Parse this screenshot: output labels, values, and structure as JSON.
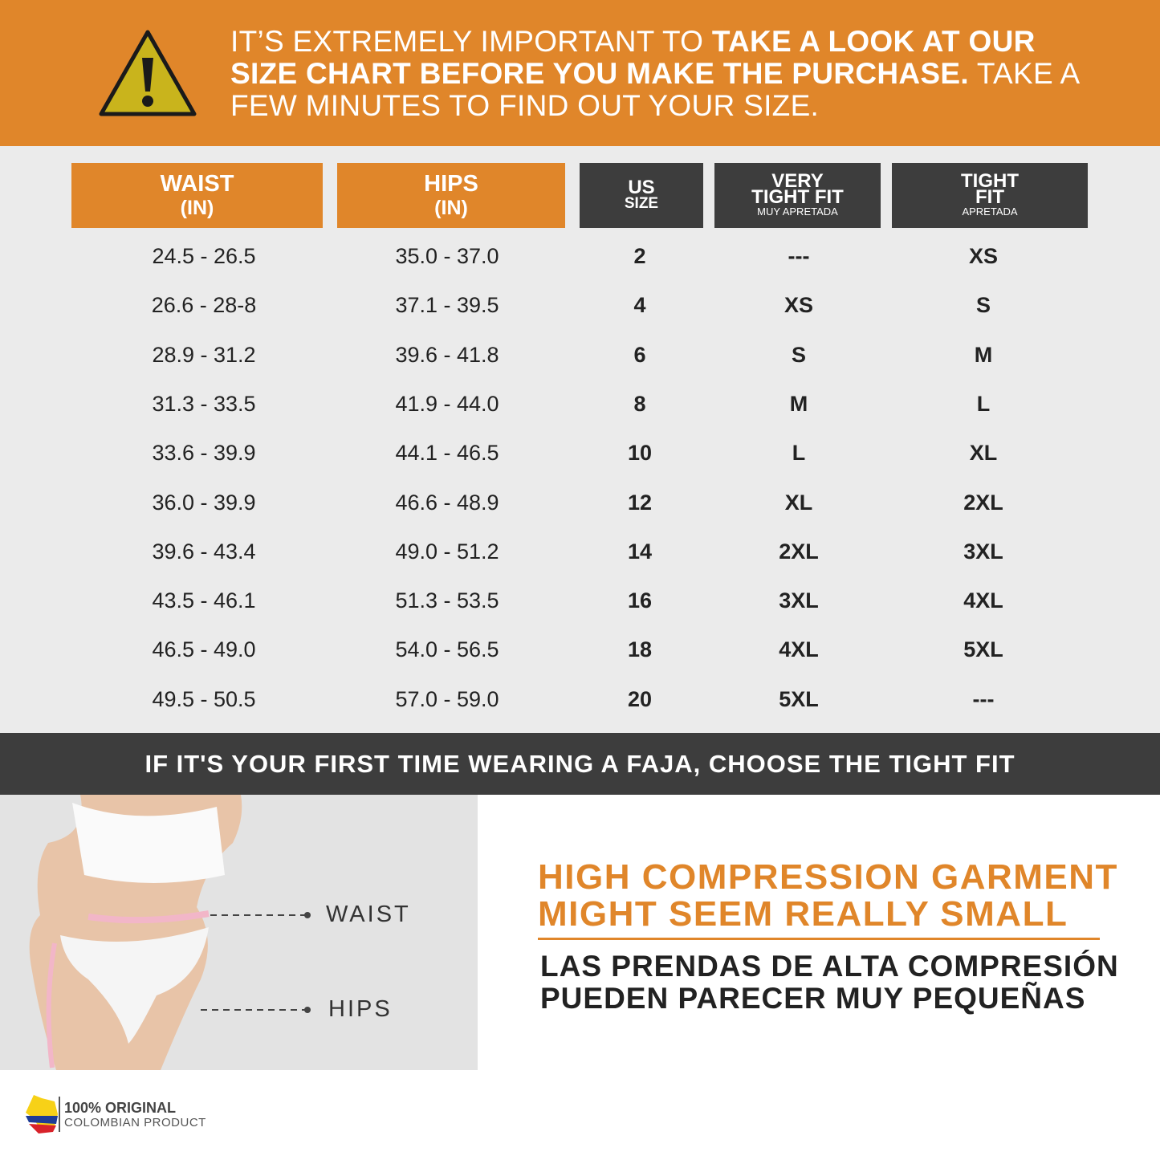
{
  "banner": {
    "text_regular_1": "IT’S EXTREMELY IMPORTANT TO ",
    "text_bold": "TAKE A LOOK AT OUR SIZE CHART BEFORE YOU MAKE THE PURCHASE.",
    "text_regular_2": " TAKE A FEW MINUTES TO FIND OUT YOUR SIZE."
  },
  "table": {
    "headers": [
      {
        "lines": [
          "WAIST",
          "(IN)"
        ]
      },
      {
        "lines": [
          "HIPS",
          "(IN)"
        ]
      },
      {
        "lines": [
          "US",
          "SIZE"
        ]
      },
      {
        "lines": [
          "VERY",
          "TIGHT FIT"
        ],
        "subtitle": "MUY APRETADA"
      },
      {
        "lines": [
          "TIGHT",
          "FIT"
        ],
        "subtitle": "APRETADA"
      }
    ],
    "rows": [
      [
        "24.5 - 26.5",
        "35.0 - 37.0",
        "2",
        "---",
        "XS"
      ],
      [
        "26.6 - 28-8",
        "37.1 - 39.5",
        "4",
        "XS",
        "S"
      ],
      [
        "28.9 - 31.2",
        "39.6 - 41.8",
        "6",
        "S",
        "M"
      ],
      [
        "31.3 - 33.5",
        "41.9 - 44.0",
        "8",
        "M",
        "L"
      ],
      [
        "33.6 - 39.9",
        "44.1 - 46.5",
        "10",
        "L",
        "XL"
      ],
      [
        "36.0 - 39.9",
        "46.6 - 48.9",
        "12",
        "XL",
        "2XL"
      ],
      [
        "39.6 - 43.4",
        "49.0 - 51.2",
        "14",
        "2XL",
        "3XL"
      ],
      [
        "43.5 - 46.1",
        "51.3 - 53.5",
        "16",
        "3XL",
        "4XL"
      ],
      [
        "46.5 - 49.0",
        "54.0 - 56.5",
        "18",
        "4XL",
        "5XL"
      ],
      [
        "49.5 - 50.5",
        "57.0 - 59.0",
        "20",
        "5XL",
        "---"
      ]
    ]
  },
  "notice": "IF IT'S YOUR FIRST TIME WEARING A FAJA, CHOOSE THE TIGHT FIT",
  "measure_labels": {
    "waist": "WAIST",
    "hips": "HIPS"
  },
  "headline": [
    "HIGH COMPRESSION GARMENT",
    "MIGHT SEEM REALLY SMALL"
  ],
  "subheadline": [
    "LAS PRENDAS DE ALTA COMPRESIÓN",
    "PUEDEN PARECER MUY PEQUEÑAS"
  ],
  "footer": {
    "title": "100% ORIGINAL",
    "subtitle": "COLOMBIAN PRODUCT"
  }
}
